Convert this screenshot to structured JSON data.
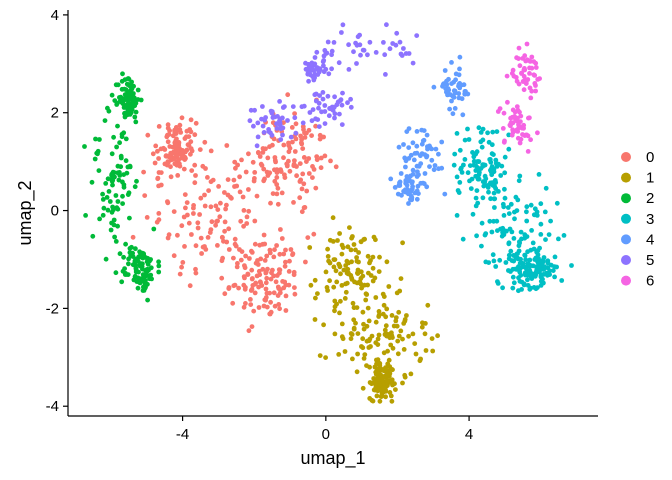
{
  "chart_data": {
    "type": "scatter",
    "title": "",
    "xlabel": "umap_1",
    "ylabel": "umap_2",
    "xlim": [
      -7.2,
      7.6
    ],
    "ylim": [
      -4.2,
      4.1
    ],
    "x_ticks": [
      -4,
      0,
      4
    ],
    "y_ticks": [
      -4,
      -2,
      0,
      2,
      4
    ],
    "grid": false,
    "legend_position": "right",
    "point_size": 2.4,
    "series": [
      {
        "name": "0",
        "color": "#F8766D",
        "center": [
          -2.6,
          0.1
        ],
        "spread": [
          1.5,
          1.15
        ],
        "count": 480,
        "regions": [
          [
            -3.0,
            0.0,
            1.6,
            1.1
          ],
          [
            -1.7,
            -1.4,
            0.8,
            0.7
          ],
          [
            -1.0,
            1.0,
            0.9,
            0.9
          ],
          [
            -4.2,
            1.2,
            0.5,
            0.5
          ]
        ]
      },
      {
        "name": "1",
        "color": "#B79F00",
        "center": [
          1.3,
          -2.4
        ],
        "spread": [
          1.2,
          0.85
        ],
        "count": 330,
        "regions": [
          [
            0.7,
            -1.3,
            0.8,
            0.8
          ],
          [
            1.5,
            -2.6,
            1.1,
            0.7
          ],
          [
            1.6,
            -3.5,
            0.3,
            0.3
          ]
        ]
      },
      {
        "name": "2",
        "color": "#00BA38",
        "center": [
          -5.8,
          0.4
        ],
        "spread": [
          0.6,
          1.25
        ],
        "count": 260,
        "regions": [
          [
            -5.9,
            0.6,
            0.55,
            1.2
          ],
          [
            -5.5,
            2.3,
            0.25,
            0.4
          ],
          [
            -5.2,
            -1.2,
            0.4,
            0.4
          ]
        ]
      },
      {
        "name": "3",
        "color": "#00BFC4",
        "center": [
          5.2,
          -0.4
        ],
        "spread": [
          1.0,
          1.0
        ],
        "count": 320,
        "regions": [
          [
            5.3,
            -0.5,
            1.0,
            0.8
          ],
          [
            4.4,
            0.9,
            0.6,
            0.7
          ],
          [
            5.9,
            -1.2,
            0.5,
            0.3
          ]
        ]
      },
      {
        "name": "4",
        "color": "#619CFF",
        "center": [
          3.2,
          1.8
        ],
        "spread": [
          0.6,
          0.8
        ],
        "count": 150,
        "regions": [
          [
            3.6,
            2.5,
            0.4,
            0.4
          ],
          [
            2.7,
            1.2,
            0.5,
            0.5
          ],
          [
            2.3,
            0.5,
            0.3,
            0.3
          ]
        ]
      },
      {
        "name": "5",
        "color": "#8D73FF",
        "center": [
          1.0,
          3.0
        ],
        "spread": [
          1.3,
          0.6
        ],
        "count": 170,
        "regions": [
          [
            1.2,
            3.3,
            1.3,
            0.35
          ],
          [
            -0.3,
            2.9,
            0.3,
            0.25
          ],
          [
            0.0,
            2.1,
            0.6,
            0.3
          ],
          [
            -1.5,
            1.8,
            0.6,
            0.3
          ]
        ]
      },
      {
        "name": "6",
        "color": "#F564E3",
        "center": [
          5.5,
          2.4
        ],
        "spread": [
          0.4,
          0.5
        ],
        "count": 100,
        "regions": [
          [
            5.6,
            2.8,
            0.3,
            0.35
          ],
          [
            5.3,
            1.8,
            0.4,
            0.4
          ]
        ]
      }
    ]
  }
}
